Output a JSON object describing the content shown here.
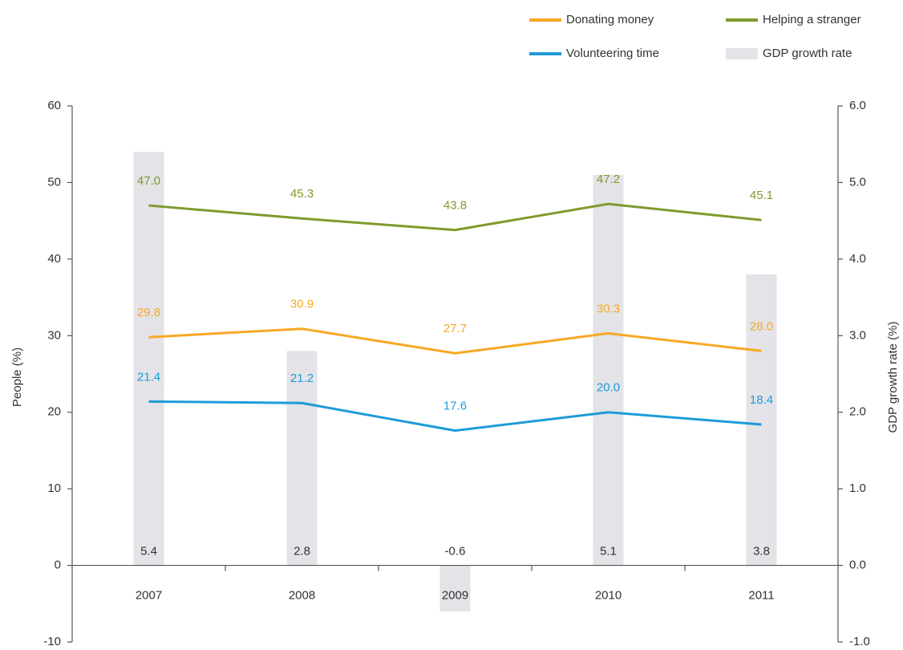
{
  "chart_data": {
    "type": "line",
    "categories": [
      "2007",
      "2008",
      "2009",
      "2010",
      "2011"
    ],
    "series": [
      {
        "name": "Donating money",
        "color": "#f7a823",
        "values": [
          29.8,
          30.9,
          27.7,
          30.3,
          28.0
        ],
        "value_labels": [
          "29.8",
          "30.9",
          "27.7",
          "30.3",
          "28.0"
        ]
      },
      {
        "name": "Helping a stranger",
        "color": "#7f9a2c",
        "values": [
          47.0,
          45.3,
          43.8,
          47.2,
          45.1
        ],
        "value_labels": [
          "47.0",
          "45.3",
          "43.8",
          "47.2",
          "45.1"
        ]
      },
      {
        "name": "Volunteering time",
        "color": "#1e9bd7",
        "values": [
          21.4,
          21.2,
          17.6,
          20.0,
          18.4
        ],
        "value_labels": [
          "21.4",
          "21.2",
          "17.6",
          "20.0",
          "18.4"
        ]
      },
      {
        "name": "GDP growth rate",
        "type": "bar",
        "axis": "y2",
        "color": "#e3e3e8",
        "values": [
          5.4,
          2.8,
          -0.6,
          5.1,
          3.8
        ]
      }
    ],
    "y_label": "People (%)",
    "y2_label": "GDP growth rate (%)",
    "ylim": [
      -10,
      60
    ],
    "yticks": [
      -10,
      0,
      10,
      20,
      30,
      40,
      50,
      60
    ],
    "y2lim": [
      -1.0,
      6.0
    ],
    "y2ticks": [
      {
        "value": -1.0,
        "label": "-1.0"
      },
      {
        "value": 0.0,
        "label": "0.0"
      },
      {
        "value": 1.0,
        "label": "1.0"
      },
      {
        "value": 2.0,
        "label": "2.0"
      },
      {
        "value": 3.0,
        "label": "3.0"
      },
      {
        "value": 4.0,
        "label": "4.0"
      },
      {
        "value": 5.0,
        "label": "5.0"
      },
      {
        "value": 6.0,
        "label": "6.0"
      }
    ],
    "legend": "top-right"
  }
}
